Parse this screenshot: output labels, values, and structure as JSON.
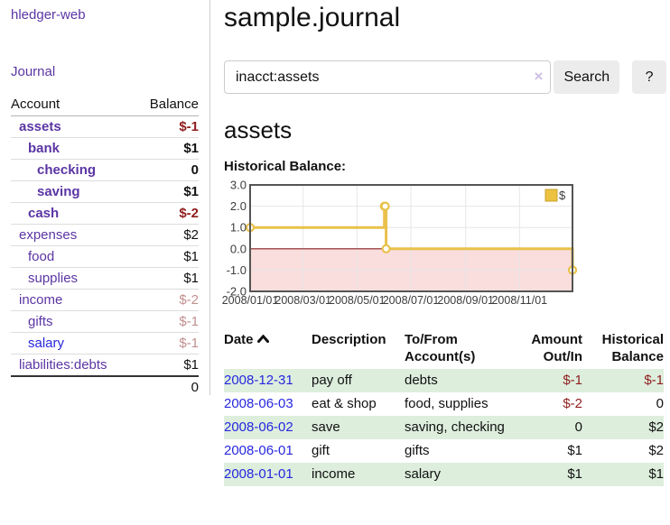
{
  "app": {
    "brand": "hledger-web",
    "nav_journal": "Journal"
  },
  "sidebar": {
    "headers": {
      "account": "Account",
      "balance": "Balance"
    },
    "accounts": [
      {
        "name": "assets",
        "level": 1,
        "bold": true,
        "link_color": "purple",
        "balance": "$-1",
        "balance_style": "neg-strong"
      },
      {
        "name": "bank",
        "level": 2,
        "bold": true,
        "link_color": "purple",
        "balance": "$1",
        "balance_style": "pos-strong"
      },
      {
        "name": "checking",
        "level": 3,
        "bold": true,
        "link_color": "purple",
        "balance": "0",
        "balance_style": "pos-strong"
      },
      {
        "name": "saving",
        "level": 3,
        "bold": true,
        "link_color": "purple",
        "balance": "$1",
        "balance_style": "pos-strong"
      },
      {
        "name": "cash",
        "level": 2,
        "bold": true,
        "link_color": "purple",
        "balance": "$-2",
        "balance_style": "neg-strong"
      },
      {
        "name": "expenses",
        "level": 1,
        "bold": false,
        "link_color": "purple",
        "balance": "$2",
        "balance_style": "pos"
      },
      {
        "name": "food",
        "level": 2,
        "bold": false,
        "link_color": "purple",
        "balance": "$1",
        "balance_style": "pos"
      },
      {
        "name": "supplies",
        "level": 2,
        "bold": false,
        "link_color": "purple",
        "balance": "$1",
        "balance_style": "pos"
      },
      {
        "name": "income",
        "level": 1,
        "bold": false,
        "link_color": "purple",
        "balance": "$-2",
        "balance_style": "neg-faded"
      },
      {
        "name": "gifts",
        "level": 2,
        "bold": false,
        "link_color": "purple",
        "balance": "$-1",
        "balance_style": "neg-faded"
      },
      {
        "name": "salary",
        "level": 2,
        "bold": false,
        "link_color": "blue",
        "balance": "$-1",
        "balance_style": "neg-faded"
      },
      {
        "name": "liabilities:debts",
        "level": 1,
        "bold": false,
        "link_color": "purple",
        "balance": "$1",
        "balance_style": "pos"
      }
    ],
    "total": "0"
  },
  "header": {
    "title": "sample.journal"
  },
  "search": {
    "value": "inacct:assets",
    "clear_icon": "×",
    "button": "Search",
    "help_button": "?"
  },
  "account_page": {
    "heading": "assets",
    "chart_label": "Historical Balance:"
  },
  "chart_data": {
    "type": "line",
    "title": "Historical Balance",
    "step": true,
    "legend": "$",
    "legend_position": "top-right",
    "grid": true,
    "ylim": [
      -2,
      3
    ],
    "xlim_dates": [
      "2008-01-01",
      "2008-12-31"
    ],
    "y_ticks": [
      {
        "label": "3.0",
        "value": 3
      },
      {
        "label": "2.0",
        "value": 2
      },
      {
        "label": "1.0",
        "value": 1
      },
      {
        "label": "0.0",
        "value": 0
      },
      {
        "label": "-1.0",
        "value": -1
      },
      {
        "label": "-2.0",
        "value": -2
      }
    ],
    "x_ticks": [
      {
        "label": "2008/01/01",
        "date": "2008-01-01"
      },
      {
        "label": "2008/03/01",
        "date": "2008-03-01"
      },
      {
        "label": "2008/05/01",
        "date": "2008-05-01"
      },
      {
        "label": "2008/07/01",
        "date": "2008-07-01"
      },
      {
        "label": "2008/09/01",
        "date": "2008-09-01"
      },
      {
        "label": "2008/11/01",
        "date": "2008-11-01"
      }
    ],
    "series": [
      {
        "name": "$",
        "color": "#edc240",
        "points": [
          {
            "date": "2008-01-01",
            "value": 1
          },
          {
            "date": "2008-06-01",
            "value": 2
          },
          {
            "date": "2008-06-02",
            "value": 2
          },
          {
            "date": "2008-06-03",
            "value": 0
          },
          {
            "date": "2008-12-31",
            "value": -1
          }
        ]
      }
    ],
    "colors": {
      "line": "#e9c14b",
      "marker_fill": "#ffffff",
      "negative_region": "#fadddd",
      "zero_line": "#871f1f",
      "gridline": "#e6e6e6",
      "border": "#545454",
      "tick_text": "#3c3c3c",
      "legend_box_border": "#c9a22e"
    }
  },
  "register": {
    "headers": {
      "date": "Date",
      "description": "Description",
      "accounts": "To/From Account(s)",
      "amount": "Amount Out/In",
      "balance": "Historical Balance"
    },
    "rows": [
      {
        "date": "2008-12-31",
        "description": "pay off",
        "accounts": "debts",
        "amount": "$-1",
        "amount_neg": true,
        "balance": "$-1",
        "balance_neg": true
      },
      {
        "date": "2008-06-03",
        "description": "eat & shop",
        "accounts": "food, supplies",
        "amount": "$-2",
        "amount_neg": true,
        "balance": "0",
        "balance_neg": false
      },
      {
        "date": "2008-06-02",
        "description": "save",
        "accounts": "saving, checking",
        "amount": "0",
        "amount_neg": false,
        "balance": "$2",
        "balance_neg": false
      },
      {
        "date": "2008-06-01",
        "description": "gift",
        "accounts": "gifts",
        "amount": "$1",
        "amount_neg": false,
        "balance": "$2",
        "balance_neg": false
      },
      {
        "date": "2008-01-01",
        "description": "income",
        "accounts": "salary",
        "amount": "$1",
        "amount_neg": false,
        "balance": "$1",
        "balance_neg": false
      }
    ]
  }
}
